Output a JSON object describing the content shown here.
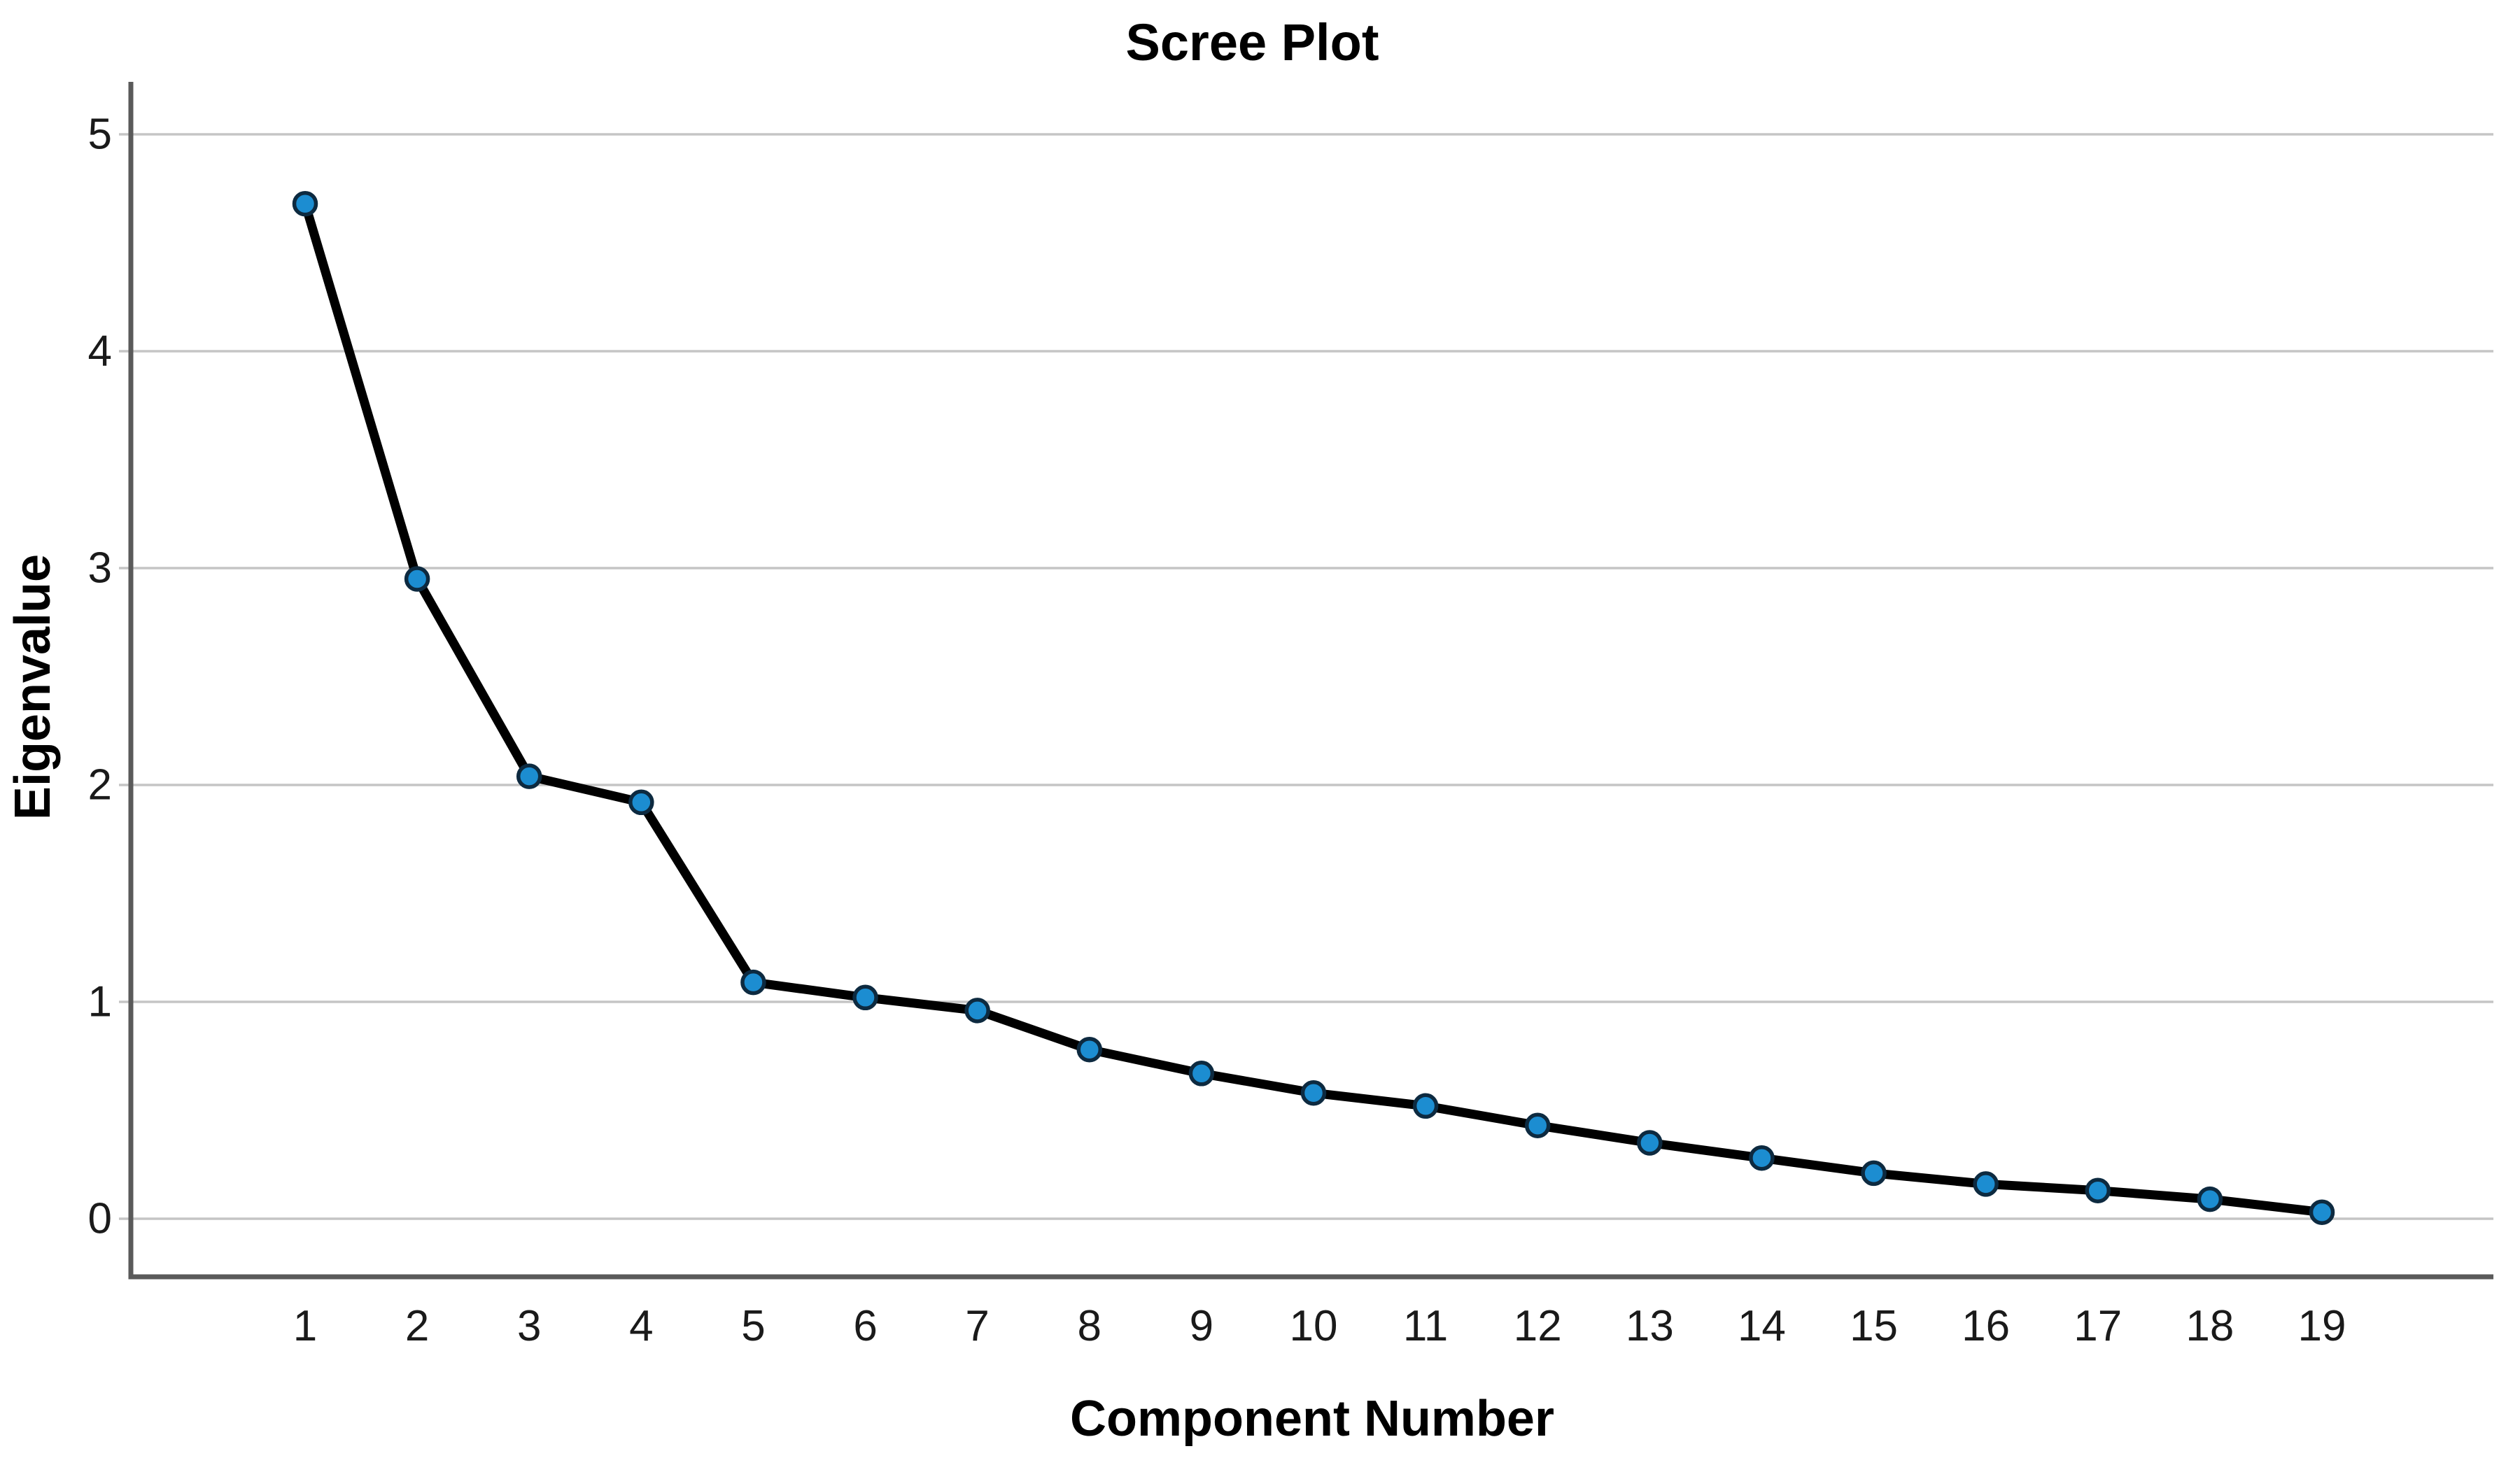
{
  "figure": {
    "background": "#ffffff"
  },
  "chart_data": {
    "type": "line",
    "title": "Scree Plot",
    "xlabel": "Component Number",
    "ylabel": "Eigenvalue",
    "categories": [
      1,
      2,
      3,
      4,
      5,
      6,
      7,
      8,
      9,
      10,
      11,
      12,
      13,
      14,
      15,
      16,
      17,
      18,
      19
    ],
    "series": [
      {
        "name": "Eigenvalue",
        "values": [
          4.68,
          2.95,
          2.04,
          1.92,
          1.09,
          1.02,
          0.96,
          0.78,
          0.67,
          0.58,
          0.52,
          0.43,
          0.35,
          0.28,
          0.21,
          0.16,
          0.13,
          0.09,
          0.03
        ]
      }
    ],
    "yticks": [
      0,
      1,
      2,
      3,
      4,
      5
    ],
    "ylim": [
      -0.27,
      5.24
    ],
    "grid": "horizontal",
    "legend": "none",
    "marker": "circle",
    "colors": {
      "line": "#000000",
      "marker_fill": "#1C8DD1",
      "marker_stroke": "#0D2A40",
      "gridline": "#C5C5C5",
      "axis": "#5A5A5A",
      "tick_text": "#1A1A1A",
      "title_text": "#000000",
      "background": "#FFFFFF"
    }
  }
}
